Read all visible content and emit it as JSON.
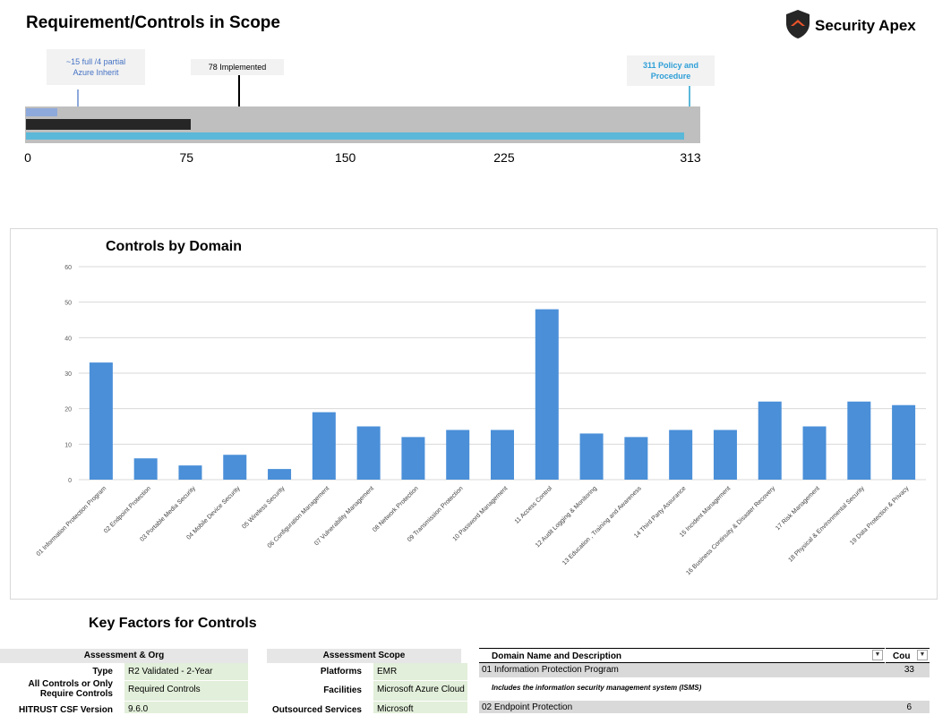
{
  "header": {
    "title": "Requirement/Controls in Scope",
    "brand_name": "Security Apex",
    "brand_icon": "shield-logo-icon"
  },
  "scope_bullet": {
    "max": 313,
    "ticks": [
      "0",
      "75",
      "150",
      "225",
      "313"
    ],
    "tick_values": [
      0,
      75,
      150,
      225,
      313
    ],
    "bars": [
      {
        "name": "inherited",
        "value": 15,
        "color": "#8ea9db"
      },
      {
        "name": "implemented",
        "value": 78,
        "color": "#262626"
      },
      {
        "name": "policy",
        "value": 311,
        "color": "#5bb8d9"
      }
    ],
    "callouts": {
      "inherit_line1": "~15 full /4 partial",
      "inherit_line2": "Azure Inherit",
      "implemented": "78 Implemented",
      "policy_line1": "311 Policy and",
      "policy_line2": "Procedure"
    }
  },
  "chart_data": {
    "type": "bar",
    "title": "Controls by Domain",
    "xlabel": "",
    "ylabel": "",
    "ylim": [
      0,
      60
    ],
    "yticks": [
      0,
      10,
      20,
      30,
      40,
      50,
      60
    ],
    "grid": true,
    "color": "#4a8fd8",
    "categories": [
      "01 Information Protection Program",
      "02 Endpoint Protection",
      "03 Portable Media Security",
      "04 Mobile Device Security",
      "05 Wireless Security",
      "06 Configuration Management",
      "07 Vulnerability Management",
      "08 Network Protection",
      "09 Transmission Protection",
      "10 Password Management",
      "11 Access Control",
      "12 Audit Logging & Monitoring",
      "13 Education , Training and Awareness",
      "14 Third Party Assurance",
      "15 Incident Management",
      "16 Business Continuity & Disaster Recovery",
      "17 Risk Management",
      "18 Physical & Environmental Security",
      "19 Data Protection & Privacy"
    ],
    "values": [
      33,
      6,
      4,
      7,
      3,
      19,
      15,
      12,
      14,
      14,
      48,
      13,
      12,
      14,
      14,
      22,
      15,
      22,
      21
    ]
  },
  "key_factors": {
    "title": "Key Factors for Controls",
    "assessment_org": {
      "header": "Assessment & Org",
      "rows": [
        {
          "label": "Type",
          "value": "R2 Validated - 2-Year"
        },
        {
          "label": "All Controls or Only Require Controls",
          "value": "Required Controls"
        },
        {
          "label": "HITRUST CSF Version",
          "value": "9.6.0"
        }
      ]
    },
    "assessment_scope": {
      "header": "Assessment Scope",
      "rows": [
        {
          "label": "Platforms",
          "value": "EMR"
        },
        {
          "label": "Facilities",
          "value": "Microsoft Azure Cloud"
        },
        {
          "label": "Outsourced Services",
          "value": "Microsoft"
        }
      ]
    },
    "domain_table": {
      "col_name": "Domain Name and Description",
      "col_count": "Cou",
      "dropdown_icon": "dropdown-arrow-icon",
      "rows": [
        {
          "name": "01 Information Protection Program",
          "count": "33",
          "desc": "Includes the information security management system (ISMS)"
        },
        {
          "name": "02 Endpoint Protection",
          "count": "6",
          "desc": ""
        }
      ]
    }
  }
}
